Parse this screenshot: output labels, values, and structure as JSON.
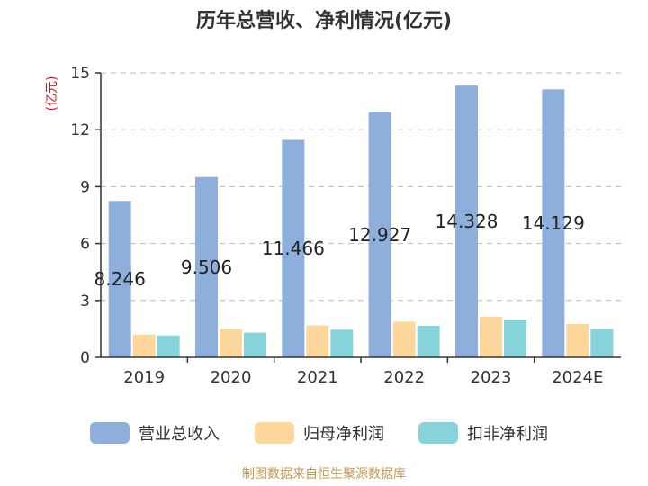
{
  "chart_data": {
    "type": "bar",
    "title": "历年总营收、净利情况(亿元)",
    "ylabel": "(亿元)",
    "xlabel": "",
    "ylim": [
      0,
      15
    ],
    "yticks": [
      0,
      3,
      6,
      9,
      12,
      15
    ],
    "grid": true,
    "legend_position": "bottom",
    "categories": [
      "2019",
      "2020",
      "2021",
      "2022",
      "2023",
      "2024E"
    ],
    "series": [
      {
        "name": "营业总收入",
        "color": "#8eaedc",
        "values": [
          8.246,
          9.506,
          11.466,
          12.927,
          14.328,
          14.129
        ]
      },
      {
        "name": "归母净利润",
        "color": "#fdd79b",
        "values": [
          1.2,
          1.5,
          1.68,
          1.88,
          2.14,
          1.76
        ]
      },
      {
        "name": "扣非净利润",
        "color": "#86d3d9",
        "values": [
          1.15,
          1.3,
          1.46,
          1.66,
          1.99,
          1.5
        ]
      }
    ],
    "data_labels": [
      "8.246",
      "9.506",
      "11.466",
      "12.927",
      "14.328",
      "14.129"
    ]
  },
  "source": "制图数据来自恒生聚源数据库"
}
